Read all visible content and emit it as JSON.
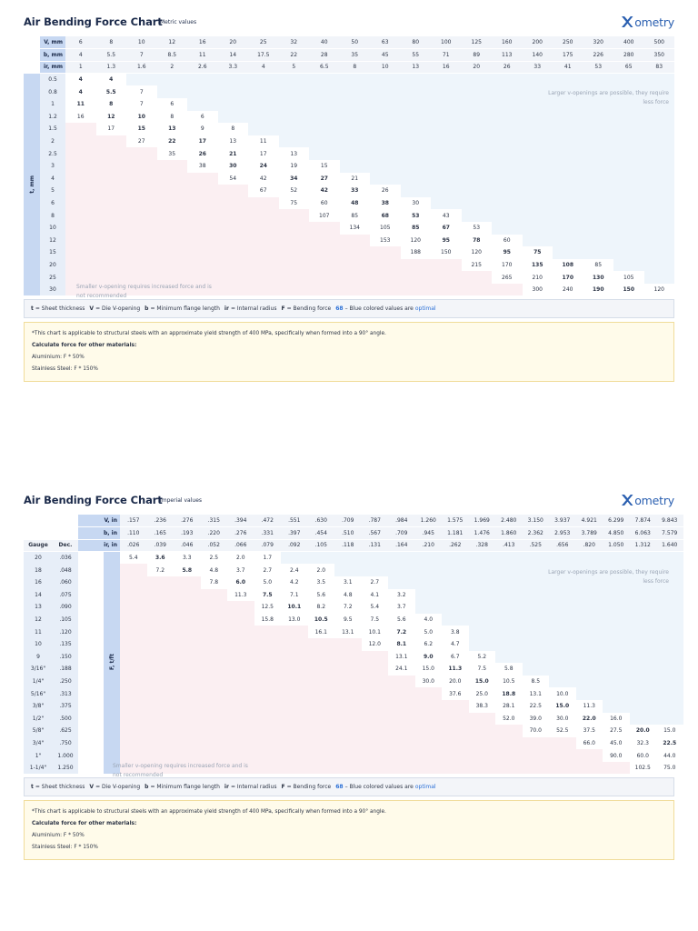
{
  "colors": {
    "accent": "#2a6fd6",
    "header": "#c7d8f2",
    "avoid": "#fbeff2",
    "larger": "#eef5fb",
    "note_bg": "#fffbea",
    "note_border": "#f0dc9a",
    "brand": "#2a5fb0"
  },
  "metric": {
    "title": "Air Bending Force Chart",
    "dot": "·",
    "subtitle": "Metric values",
    "logo_x": "X",
    "logo": "ometry",
    "axis_label": "t, mm",
    "head_v": "V, mm",
    "head_b": "b, mm",
    "head_ir": "ir, mm",
    "v": [
      "6",
      "8",
      "10",
      "12",
      "16",
      "20",
      "25",
      "32",
      "40",
      "50",
      "63",
      "80",
      "100",
      "125",
      "160",
      "200",
      "250",
      "320",
      "400",
      "500"
    ],
    "b": [
      "4",
      "5.5",
      "7",
      "8.5",
      "11",
      "14",
      "17.5",
      "22",
      "28",
      "35",
      "45",
      "55",
      "71",
      "89",
      "113",
      "140",
      "175",
      "226",
      "280",
      "350"
    ],
    "ir": [
      "1",
      "1.3",
      "1.6",
      "2",
      "2.6",
      "3.3",
      "4",
      "5",
      "6.5",
      "8",
      "10",
      "13",
      "16",
      "20",
      "26",
      "33",
      "41",
      "53",
      "65",
      "83"
    ],
    "rows": [
      {
        "t": "0.5",
        "start": 0,
        "cells": [
          [
            "4",
            1
          ],
          [
            "4",
            1
          ]
        ]
      },
      {
        "t": "0.8",
        "start": 0,
        "cells": [
          [
            "4",
            1
          ],
          [
            "5.5",
            1
          ],
          [
            "7",
            0
          ]
        ]
      },
      {
        "t": "1",
        "start": 0,
        "cells": [
          [
            "11",
            1
          ],
          [
            "8",
            1
          ],
          [
            "7",
            0
          ],
          [
            "6",
            0
          ]
        ]
      },
      {
        "t": "1.2",
        "start": 0,
        "cells": [
          [
            "16",
            0
          ],
          [
            "12",
            1
          ],
          [
            "10",
            1
          ],
          [
            "8",
            0
          ],
          [
            "6",
            0
          ]
        ]
      },
      {
        "t": "1.5",
        "start": 1,
        "cells": [
          [
            "17",
            0
          ],
          [
            "15",
            1
          ],
          [
            "13",
            1
          ],
          [
            "9",
            0
          ],
          [
            "8",
            0
          ]
        ]
      },
      {
        "t": "2",
        "start": 2,
        "cells": [
          [
            "27",
            0
          ],
          [
            "22",
            1
          ],
          [
            "17",
            1
          ],
          [
            "13",
            0
          ],
          [
            "11",
            0
          ]
        ]
      },
      {
        "t": "2.5",
        "start": 3,
        "cells": [
          [
            "35",
            0
          ],
          [
            "26",
            1
          ],
          [
            "21",
            1
          ],
          [
            "17",
            0
          ],
          [
            "13",
            0
          ]
        ]
      },
      {
        "t": "3",
        "start": 4,
        "cells": [
          [
            "38",
            0
          ],
          [
            "30",
            1
          ],
          [
            "24",
            1
          ],
          [
            "19",
            0
          ],
          [
            "15",
            0
          ]
        ]
      },
      {
        "t": "4",
        "start": 5,
        "cells": [
          [
            "54",
            0
          ],
          [
            "42",
            0
          ],
          [
            "34",
            1
          ],
          [
            "27",
            1
          ],
          [
            "21",
            0
          ]
        ]
      },
      {
        "t": "5",
        "start": 6,
        "cells": [
          [
            "67",
            0
          ],
          [
            "52",
            0
          ],
          [
            "42",
            1
          ],
          [
            "33",
            1
          ],
          [
            "26",
            0
          ]
        ]
      },
      {
        "t": "6",
        "start": 7,
        "cells": [
          [
            "75",
            0
          ],
          [
            "60",
            0
          ],
          [
            "48",
            1
          ],
          [
            "38",
            1
          ],
          [
            "30",
            0
          ]
        ]
      },
      {
        "t": "8",
        "start": 8,
        "cells": [
          [
            "107",
            0
          ],
          [
            "85",
            0
          ],
          [
            "68",
            1
          ],
          [
            "53",
            1
          ],
          [
            "43",
            0
          ]
        ]
      },
      {
        "t": "10",
        "start": 9,
        "cells": [
          [
            "134",
            0
          ],
          [
            "105",
            0
          ],
          [
            "85",
            1
          ],
          [
            "67",
            1
          ],
          [
            "53",
            0
          ]
        ]
      },
      {
        "t": "12",
        "start": 10,
        "cells": [
          [
            "153",
            0
          ],
          [
            "120",
            0
          ],
          [
            "95",
            1
          ],
          [
            "78",
            1
          ],
          [
            "60",
            0
          ]
        ]
      },
      {
        "t": "15",
        "start": 11,
        "cells": [
          [
            "188",
            0
          ],
          [
            "150",
            0
          ],
          [
            "120",
            0
          ],
          [
            "95",
            1
          ],
          [
            "75",
            1
          ]
        ]
      },
      {
        "t": "20",
        "start": 13,
        "cells": [
          [
            "215",
            0
          ],
          [
            "170",
            0
          ],
          [
            "135",
            1
          ],
          [
            "108",
            1
          ],
          [
            "85",
            0
          ]
        ]
      },
      {
        "t": "25",
        "start": 14,
        "cells": [
          [
            "265",
            0
          ],
          [
            "210",
            0
          ],
          [
            "170",
            1
          ],
          [
            "130",
            1
          ],
          [
            "105",
            0
          ]
        ]
      },
      {
        "t": "30",
        "start": 15,
        "cells": [
          [
            "300",
            0
          ],
          [
            "240",
            0
          ],
          [
            "190",
            1
          ],
          [
            "150",
            1
          ],
          [
            "120",
            0
          ]
        ]
      }
    ],
    "note_larger": "Larger v-openings are possible, they require less force",
    "note_smaller": "Smaller v-opening requires increased force and is not recommended"
  },
  "imperial": {
    "title": "Air Bending Force Chart",
    "dot": "·",
    "subtitle": "Imperial values",
    "logo_x": "X",
    "logo": "ometry",
    "axis_label": "F, t/ft",
    "head_v": "V, in",
    "head_b": "b, in",
    "head_ir": "ir, in",
    "gauge_label": "Gauge",
    "dec_label": "Dec.",
    "v": [
      ".157",
      ".236",
      ".276",
      ".315",
      ".394",
      ".472",
      ".551",
      ".630",
      ".709",
      ".787",
      ".984",
      "1.260",
      "1.575",
      "1.969",
      "2.480",
      "3.150",
      "3.937",
      "4.921",
      "6.299",
      "7.874",
      "9.843"
    ],
    "b": [
      ".110",
      ".165",
      ".193",
      ".220",
      ".276",
      ".331",
      ".397",
      ".454",
      ".510",
      ".567",
      ".709",
      ".945",
      "1.181",
      "1.476",
      "1.860",
      "2.362",
      "2.953",
      "3.789",
      "4.850",
      "6.063",
      "7.579"
    ],
    "ir": [
      ".026",
      ".039",
      ".046",
      ".052",
      ".066",
      ".079",
      ".092",
      ".105",
      ".118",
      ".131",
      ".164",
      ".210",
      ".262",
      ".328",
      ".413",
      ".525",
      ".656",
      ".820",
      "1.050",
      "1.312",
      "1.640"
    ],
    "rows": [
      {
        "g": "20",
        "d": ".036",
        "start": 0,
        "cells": [
          [
            "5.4",
            0
          ],
          [
            "3.6",
            1
          ],
          [
            "3.3",
            0
          ],
          [
            "2.5",
            0
          ],
          [
            "2.0",
            0
          ],
          [
            "1.7",
            0
          ]
        ]
      },
      {
        "g": "18",
        "d": ".048",
        "start": 1,
        "cells": [
          [
            "7.2",
            0
          ],
          [
            "5.8",
            1
          ],
          [
            "4.8",
            0
          ],
          [
            "3.7",
            0
          ],
          [
            "2.7",
            0
          ],
          [
            "2.4",
            0
          ],
          [
            "2.0",
            0
          ]
        ]
      },
      {
        "g": "16",
        "d": ".060",
        "start": 3,
        "cells": [
          [
            "7.8",
            0
          ],
          [
            "6.0",
            1
          ],
          [
            "5.0",
            0
          ],
          [
            "4.2",
            0
          ],
          [
            "3.5",
            0
          ],
          [
            "3.1",
            0
          ],
          [
            "2.7",
            0
          ]
        ]
      },
      {
        "g": "14",
        "d": ".075",
        "start": 4,
        "cells": [
          [
            "11.3",
            0
          ],
          [
            "7.5",
            1
          ],
          [
            "7.1",
            0
          ],
          [
            "5.6",
            0
          ],
          [
            "4.8",
            0
          ],
          [
            "4.1",
            0
          ],
          [
            "3.2",
            0
          ]
        ]
      },
      {
        "g": "13",
        "d": ".090",
        "start": 5,
        "cells": [
          [
            "12.5",
            0
          ],
          [
            "10.1",
            1
          ],
          [
            "8.2",
            0
          ],
          [
            "7.2",
            0
          ],
          [
            "5.4",
            0
          ],
          [
            "3.7",
            0
          ]
        ]
      },
      {
        "g": "12",
        "d": ".105",
        "start": 5,
        "cells": [
          [
            "15.8",
            0
          ],
          [
            "13.0",
            0
          ],
          [
            "10.5",
            1
          ],
          [
            "9.5",
            0
          ],
          [
            "7.5",
            0
          ],
          [
            "5.6",
            0
          ],
          [
            "4.0",
            0
          ]
        ]
      },
      {
        "g": "11",
        "d": ".120",
        "start": 7,
        "cells": [
          [
            "16.1",
            0
          ],
          [
            "13.1",
            0
          ],
          [
            "10.1",
            0
          ],
          [
            "7.2",
            1
          ],
          [
            "5.0",
            0
          ],
          [
            "3.8",
            0
          ]
        ]
      },
      {
        "g": "10",
        "d": ".135",
        "start": 9,
        "cells": [
          [
            "12.0",
            0
          ],
          [
            "8.1",
            1
          ],
          [
            "6.2",
            0
          ],
          [
            "4.7",
            0
          ]
        ]
      },
      {
        "g": "9",
        "d": ".150",
        "start": 10,
        "cells": [
          [
            "13.1",
            0
          ],
          [
            "9.0",
            1
          ],
          [
            "6.7",
            0
          ],
          [
            "5.2",
            0
          ]
        ]
      },
      {
        "g": "3/16\"",
        "d": ".188",
        "start": 10,
        "cells": [
          [
            "24.1",
            0
          ],
          [
            "15.0",
            0
          ],
          [
            "11.3",
            1
          ],
          [
            "7.5",
            0
          ],
          [
            "5.8",
            0
          ]
        ]
      },
      {
        "g": "1/4\"",
        "d": ".250",
        "start": 11,
        "cells": [
          [
            "30.0",
            0
          ],
          [
            "20.0",
            0
          ],
          [
            "15.0",
            1
          ],
          [
            "10.5",
            0
          ],
          [
            "8.5",
            0
          ]
        ]
      },
      {
        "g": "5/16\"",
        "d": ".313",
        "start": 12,
        "cells": [
          [
            "37.6",
            0
          ],
          [
            "25.0",
            0
          ],
          [
            "18.8",
            1
          ],
          [
            "13.1",
            0
          ],
          [
            "10.0",
            0
          ]
        ]
      },
      {
        "g": "3/8\"",
        "d": ".375",
        "start": 13,
        "cells": [
          [
            "38.3",
            0
          ],
          [
            "28.1",
            0
          ],
          [
            "22.5",
            0
          ],
          [
            "15.0",
            1
          ],
          [
            "11.3",
            0
          ]
        ]
      },
      {
        "g": "1/2\"",
        "d": ".500",
        "start": 14,
        "cells": [
          [
            "52.0",
            0
          ],
          [
            "39.0",
            0
          ],
          [
            "30.0",
            0
          ],
          [
            "22.0",
            1
          ],
          [
            "16.0",
            0
          ]
        ]
      },
      {
        "g": "5/8\"",
        "d": ".625",
        "start": 15,
        "cells": [
          [
            "70.0",
            0
          ],
          [
            "52.5",
            0
          ],
          [
            "37.5",
            0
          ],
          [
            "27.5",
            0
          ],
          [
            "20.0",
            1
          ],
          [
            "15.0",
            0
          ]
        ]
      },
      {
        "g": "3/4\"",
        "d": ".750",
        "start": 17,
        "cells": [
          [
            "66.0",
            0
          ],
          [
            "45.0",
            0
          ],
          [
            "32.3",
            0
          ],
          [
            "22.5",
            1
          ]
        ]
      },
      {
        "g": "1\"",
        "d": "1.000",
        "start": 18,
        "cells": [
          [
            "90.0",
            0
          ],
          [
            "60.0",
            0
          ],
          [
            "44.0",
            0
          ]
        ]
      },
      {
        "g": "1-1/4\"",
        "d": "1.250",
        "start": 19,
        "cells": [
          [
            "102.5",
            0
          ],
          [
            "75.0",
            0
          ]
        ]
      }
    ],
    "note_larger": "Larger v-openings are possible, they require less force",
    "note_smaller": "Smaller v-opening requires increased force and is not recommended"
  },
  "legend": {
    "t": "t",
    "t_def": "= Sheet thickness",
    "v": "V",
    "v_def": "= Die V-opening",
    "b": "b",
    "b_def": "= Minimum flange length",
    "ir": "ir",
    "ir_def": "= Internal radius",
    "f": "F",
    "f_def": "= Bending force",
    "example": "68",
    "blue_text": "– Blue colored values are",
    "optimal": "optimal"
  },
  "note": {
    "applicability": "*This chart is applicable to structural steels with an approximate yield strength of 400 MPa, specifically when formed into a 90° angle.",
    "calc_heading": "Calculate force for other materials:",
    "aluminium": "Aluminium: F * 50%",
    "stainless": "Stainless Steel: F * 150%"
  }
}
